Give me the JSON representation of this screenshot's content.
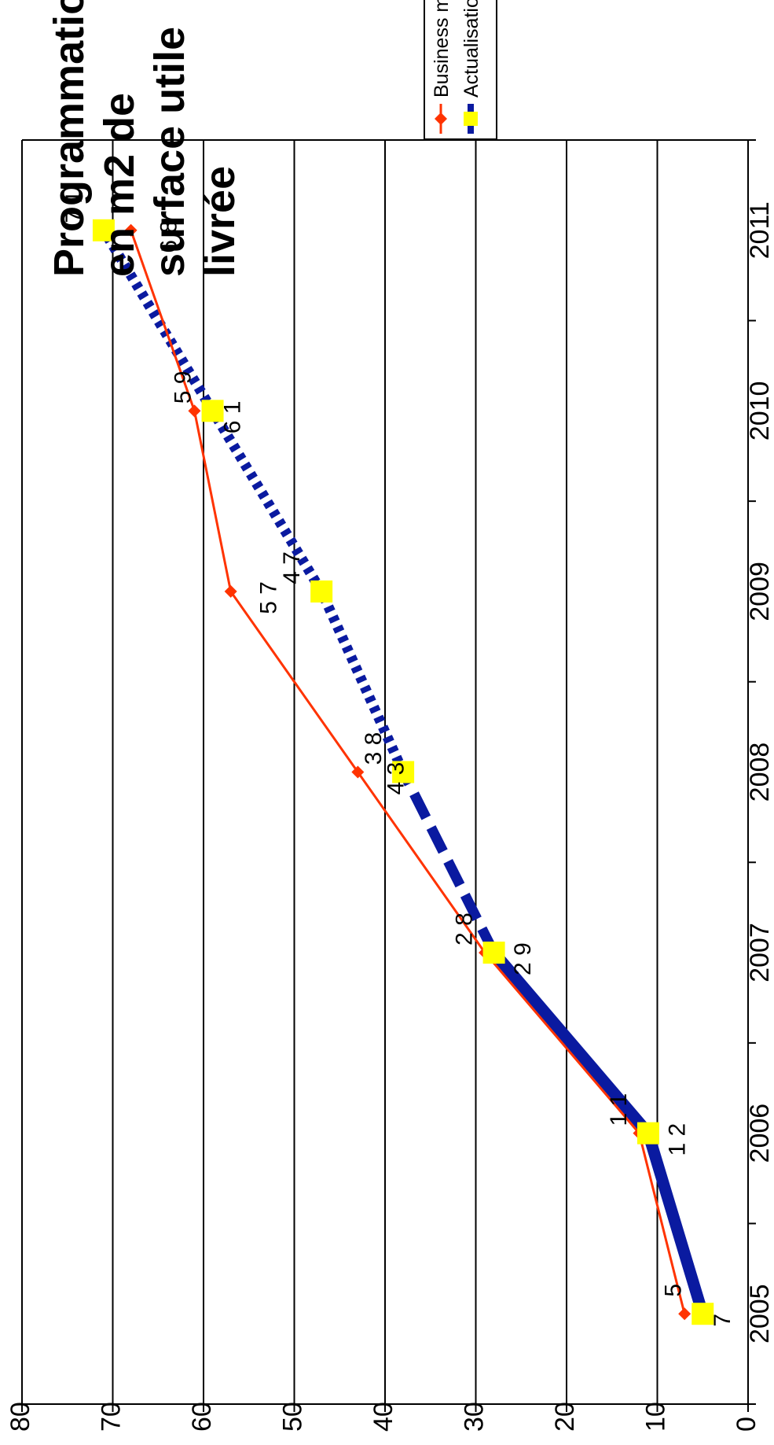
{
  "chart_data": {
    "type": "line",
    "title_lines": [
      "Programmation",
      "en m2 de",
      "surface utile",
      "livrée"
    ],
    "orientation": "rotated-90-counterclockwise",
    "categories": [
      "2005",
      "2006",
      "2007",
      "2008",
      "2009",
      "2010",
      "2011"
    ],
    "ylim": [
      0,
      80
    ],
    "y_ticks": [
      "0",
      "10",
      "20",
      "30",
      "40",
      "50",
      "60",
      "70",
      "80"
    ],
    "grid": true,
    "legend_position": "top-right",
    "series": [
      {
        "name": "Business model",
        "color": "#ff3300",
        "marker": "diamond",
        "values": [
          7,
          12,
          29,
          43,
          57,
          61,
          68
        ],
        "labels": [
          "7",
          "1 2",
          "2 9",
          "4 3",
          "5 7",
          "6 1",
          "6 8"
        ]
      },
      {
        "name": "Actualisation",
        "color": "#0a1aa0",
        "marker_color": "#ffff00",
        "marker": "square",
        "line_styles": [
          "solid",
          "solid",
          "dashed",
          "dotted",
          "dotted",
          "dotted"
        ],
        "values": [
          5,
          11,
          28,
          38,
          47,
          59,
          71
        ],
        "labels": [
          "5",
          "1 1",
          "2 8",
          "3 8",
          "4 7",
          "5 9",
          "7 1"
        ]
      }
    ]
  }
}
